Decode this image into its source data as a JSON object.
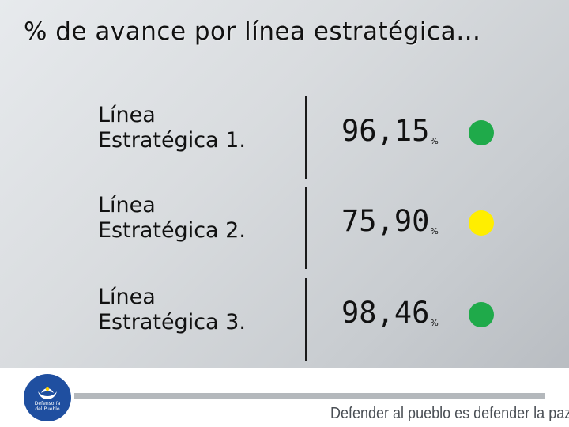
{
  "title": "% de avance por línea estratégica…",
  "rows": [
    {
      "label_line1": "Línea",
      "label_line2": "Estratégica 1.",
      "value": "96,15",
      "unit": "%",
      "status_color": "#1faa4a"
    },
    {
      "label_line1": "Línea",
      "label_line2": "Estratégica 2.",
      "value": "75,90",
      "unit": "%",
      "status_color": "#ffee00"
    },
    {
      "label_line1": "Línea",
      "label_line2": "Estratégica 3.",
      "value": "98,46",
      "unit": "%",
      "status_color": "#1faa4a"
    }
  ],
  "footer": {
    "logo_line1": "Defensoría",
    "logo_line2": "del Pueblo",
    "slogan": "Defender al pueblo es defender la paz",
    "brand_color": "#1f4fa0"
  }
}
